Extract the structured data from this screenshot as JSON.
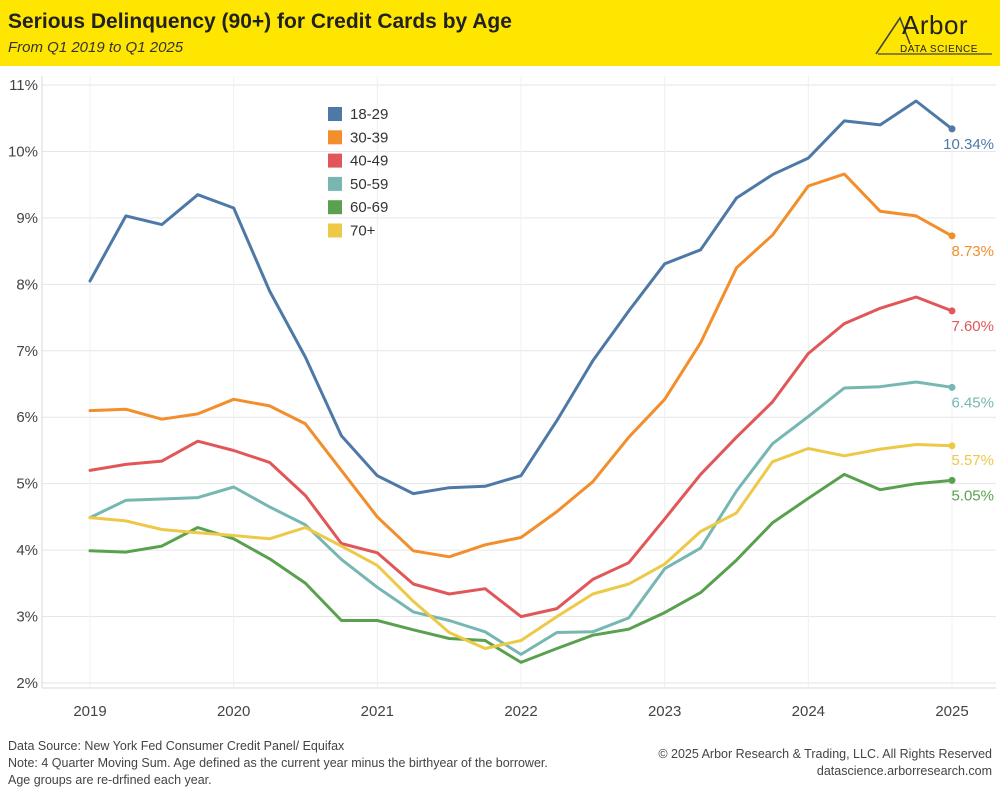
{
  "header": {
    "title": "Serious Delinquency (90+) for Credit Cards by Age",
    "subtitle": "From Q1 2019 to Q1 2025",
    "logo_name": "Arbor",
    "logo_sub": "DATA SCIENCE",
    "background_color": "#FFE600"
  },
  "footer": {
    "source": "Data Source: New York Fed Consumer Credit Panel/ Equifax",
    "note": "Note: 4 Quarter Moving Sum. Age defined as the current year minus the birthyear of the borrower. Age groups are re-drfined each year.",
    "copyright": "© 2025 Arbor Research & Trading, LLC. All Rights Reserved",
    "website": "datascience.arborresearch.com"
  },
  "chart_data": {
    "type": "line",
    "title": "",
    "xlabel": "",
    "ylabel": "",
    "grid": true,
    "legend_placement": "top-left",
    "x": [
      "2019 Q1",
      "2019 Q2",
      "2019 Q3",
      "2019 Q4",
      "2020 Q1",
      "2020 Q2",
      "2020 Q3",
      "2020 Q4",
      "2021 Q1",
      "2021 Q2",
      "2021 Q3",
      "2021 Q4",
      "2022 Q1",
      "2022 Q2",
      "2022 Q3",
      "2022 Q4",
      "2023 Q1",
      "2023 Q2",
      "2023 Q3",
      "2023 Q4",
      "2024 Q1",
      "2024 Q2",
      "2024 Q3",
      "2024 Q4",
      "2025 Q1"
    ],
    "x_tick_labels": [
      "2019",
      "2020",
      "2021",
      "2022",
      "2023",
      "2024",
      "2025"
    ],
    "y_tick_labels": [
      "2%",
      "3%",
      "4%",
      "5%",
      "6%",
      "7%",
      "8%",
      "9%",
      "10%",
      "11%"
    ],
    "ylim": [
      1.95,
      11.05
    ],
    "series": [
      {
        "name": "18-29",
        "color": "#4E79A7",
        "end_label": "10.34%",
        "values": [
          8.05,
          9.03,
          8.9,
          9.35,
          9.15,
          7.9,
          6.9,
          5.72,
          5.12,
          4.85,
          4.94,
          4.96,
          5.12,
          5.95,
          6.85,
          7.6,
          8.31,
          8.52,
          9.3,
          9.65,
          9.9,
          10.46,
          10.4,
          10.76,
          10.34
        ]
      },
      {
        "name": "30-39",
        "color": "#F28E2B",
        "end_label": "8.73%",
        "values": [
          6.1,
          6.12,
          5.97,
          6.05,
          6.27,
          6.17,
          5.9,
          5.2,
          4.5,
          3.99,
          3.9,
          4.08,
          4.19,
          4.58,
          5.03,
          5.7,
          6.27,
          7.12,
          8.25,
          8.74,
          9.48,
          9.66,
          9.1,
          9.03,
          8.73
        ]
      },
      {
        "name": "40-49",
        "color": "#E15759",
        "end_label": "7.60%",
        "values": [
          5.2,
          5.29,
          5.34,
          5.64,
          5.5,
          5.32,
          4.82,
          4.1,
          3.96,
          3.49,
          3.34,
          3.42,
          3.0,
          3.12,
          3.56,
          3.81,
          4.47,
          5.14,
          5.7,
          6.23,
          6.96,
          7.41,
          7.64,
          7.81,
          7.6
        ]
      },
      {
        "name": "50-59",
        "color": "#76B7B2",
        "end_label": "6.45%",
        "values": [
          4.49,
          4.75,
          4.77,
          4.79,
          4.95,
          4.65,
          4.38,
          3.86,
          3.44,
          3.07,
          2.94,
          2.77,
          2.43,
          2.76,
          2.77,
          2.98,
          3.72,
          4.03,
          4.89,
          5.6,
          6.01,
          6.44,
          6.46,
          6.53,
          6.45
        ]
      },
      {
        "name": "60-69",
        "color": "#59A14F",
        "end_label": "5.05%",
        "values": [
          3.99,
          3.97,
          4.06,
          4.34,
          4.17,
          3.87,
          3.5,
          2.94,
          2.94,
          2.8,
          2.67,
          2.64,
          2.31,
          2.52,
          2.72,
          2.81,
          3.06,
          3.36,
          3.85,
          4.41,
          4.78,
          5.14,
          4.91,
          5.0,
          5.05
        ]
      },
      {
        "name": "70+",
        "color": "#EDC948",
        "end_label": "5.57%",
        "values": [
          4.49,
          4.44,
          4.31,
          4.26,
          4.22,
          4.17,
          4.34,
          4.06,
          3.77,
          3.23,
          2.76,
          2.52,
          2.64,
          3.0,
          3.34,
          3.49,
          3.79,
          4.28,
          4.56,
          5.33,
          5.53,
          5.42,
          5.52,
          5.59,
          5.57
        ]
      }
    ]
  }
}
